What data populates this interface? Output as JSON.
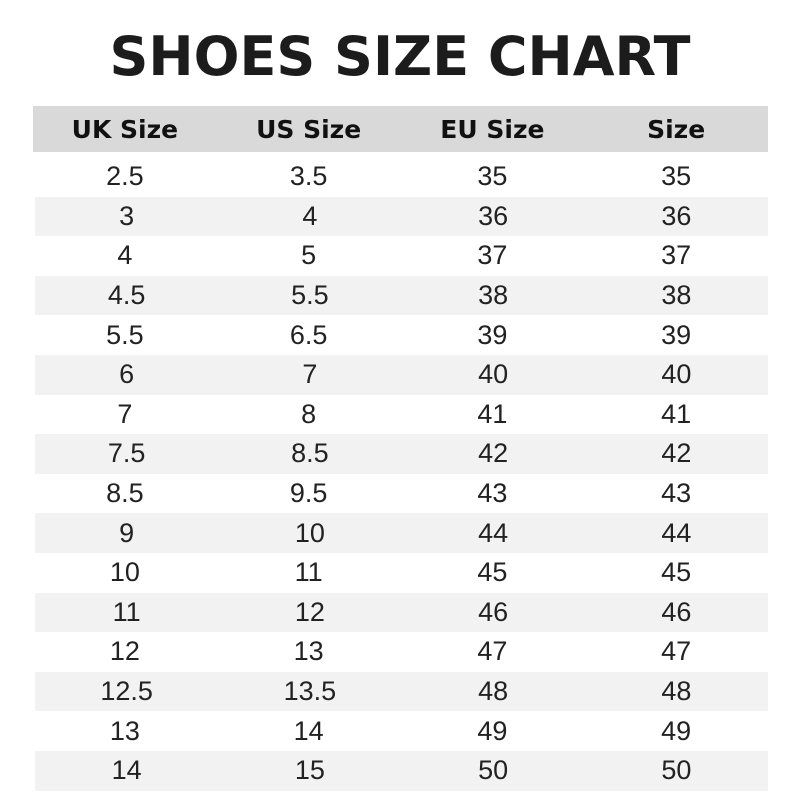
{
  "title": "SHOES SIZE CHART",
  "headers": [
    "UK Size",
    "US Size",
    "EU Size",
    "Size"
  ],
  "rows": [
    [
      "2.5",
      "3.5",
      "35",
      "35"
    ],
    [
      "3",
      "4",
      "36",
      "36"
    ],
    [
      "4",
      "5",
      "37",
      "37"
    ],
    [
      "4.5",
      "5.5",
      "38",
      "38"
    ],
    [
      "5.5",
      "6.5",
      "39",
      "39"
    ],
    [
      "6",
      "7",
      "40",
      "40"
    ],
    [
      "7",
      "8",
      "41",
      "41"
    ],
    [
      "7.5",
      "8.5",
      "42",
      "42"
    ],
    [
      "8.5",
      "9.5",
      "43",
      "43"
    ],
    [
      "9",
      "10",
      "44",
      "44"
    ],
    [
      "10",
      "11",
      "45",
      "45"
    ],
    [
      "11",
      "12",
      "46",
      "46"
    ],
    [
      "12",
      "13",
      "47",
      "47"
    ],
    [
      "12.5",
      "13.5",
      "48",
      "48"
    ],
    [
      "13",
      "14",
      "49",
      "49"
    ],
    [
      "14",
      "15",
      "50",
      "50"
    ]
  ],
  "colors": {
    "header_bg": "#d9d9d9",
    "stripe_bg": "#f2f2f2"
  }
}
